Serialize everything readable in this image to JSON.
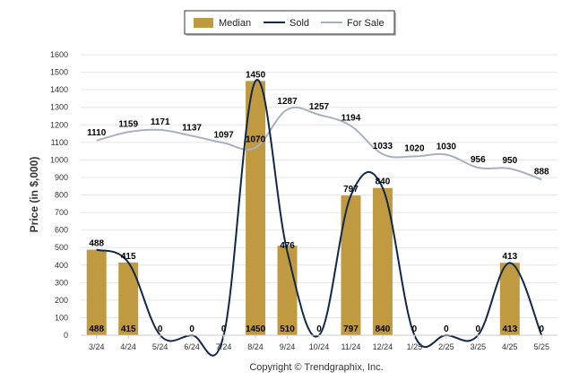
{
  "chart_data": {
    "type": "bar",
    "categories": [
      "3/24",
      "4/24",
      "5/24",
      "6/24",
      "7/24",
      "8/24",
      "9/24",
      "10/24",
      "11/24",
      "12/24",
      "1/25",
      "2/25",
      "3/25",
      "4/25",
      "5/25"
    ],
    "ylabel": "Price (in $,000)",
    "ylim": [
      0,
      1600
    ],
    "yticks": [
      0,
      100,
      200,
      300,
      400,
      500,
      600,
      700,
      800,
      900,
      1000,
      1100,
      1200,
      1300,
      1400,
      1500,
      1600
    ],
    "legend_position": "top-center",
    "legend": [
      "Median",
      "Sold",
      "For Sale"
    ],
    "series": [
      {
        "name": "Median",
        "type": "bar",
        "color": "#c09a41",
        "values": [
          488,
          415,
          0,
          0,
          0,
          1450,
          510,
          0,
          797,
          840,
          0,
          0,
          0,
          413,
          0
        ]
      },
      {
        "name": "Sold",
        "type": "line",
        "color": "#10284a",
        "values": [
          488,
          415,
          0,
          0,
          0,
          1450,
          476,
          0,
          797,
          840,
          0,
          0,
          0,
          413,
          0
        ]
      },
      {
        "name": "For Sale",
        "type": "line",
        "color": "#a9b0c2",
        "values": [
          1110,
          1159,
          1171,
          1137,
          1097,
          1070,
          1287,
          1257,
          1194,
          1033,
          1020,
          1030,
          956,
          950,
          888
        ]
      }
    ],
    "footer": "Copyright © Trendgraphix, Inc."
  }
}
